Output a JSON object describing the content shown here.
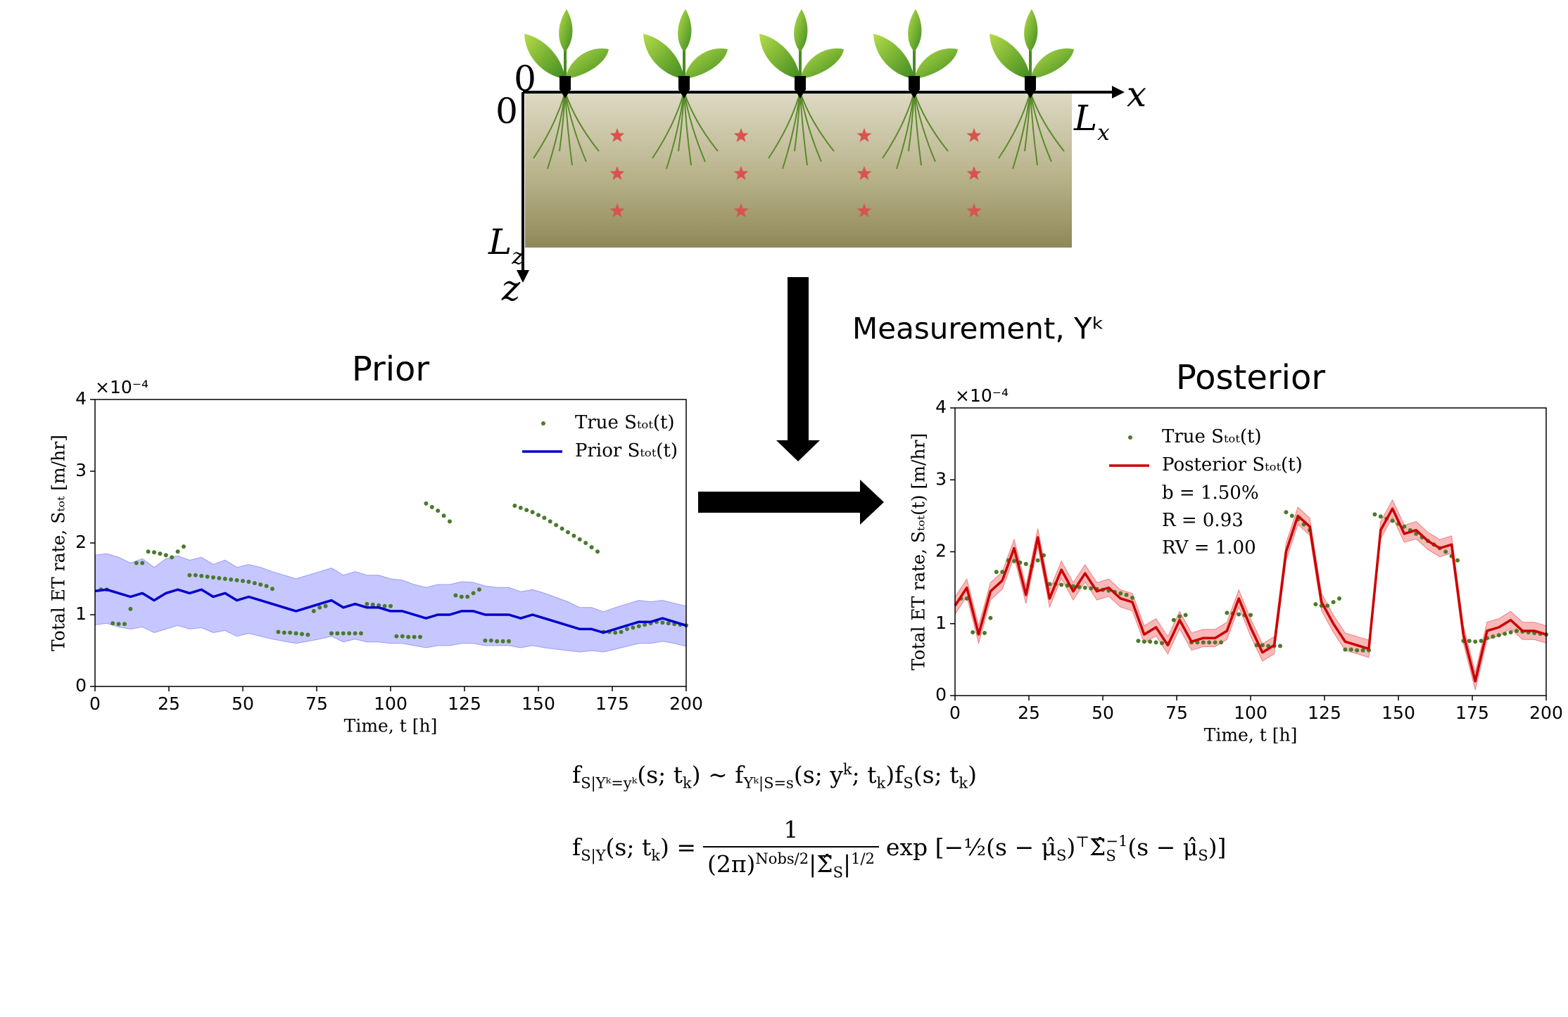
{
  "diagram": {
    "x_origin": "0",
    "z_origin": "0",
    "x_axis": "x",
    "z_axis": "z",
    "x_length": {
      "text": "L",
      "sub": "x"
    },
    "z_length": {
      "text": "L",
      "sub": "z"
    },
    "arrow_label": "Measurement, Yᵏ"
  },
  "chart_data": [
    {
      "type": "line",
      "title": "Prior",
      "x_label": "Time, t [h]",
      "y_label": "Total ET rate, Sₜₒₜ [m/hr]",
      "offset_label": "×10⁻⁴",
      "xlim": [
        0,
        200
      ],
      "xticks": [
        0,
        25,
        50,
        75,
        100,
        125,
        150,
        175,
        200
      ],
      "ylim": [
        0,
        4
      ],
      "yticks": [
        0,
        1,
        2,
        3,
        4
      ],
      "legend": "upper right",
      "series": [
        {
          "name": "True Sₜₒₜ(t)",
          "type": "scatter",
          "color": "#4a7a2c",
          "x": [
            2,
            4,
            6,
            8,
            10,
            12,
            14,
            16,
            18,
            20,
            22,
            24,
            26,
            28,
            30,
            32,
            34,
            36,
            38,
            40,
            42,
            44,
            46,
            48,
            50,
            52,
            54,
            56,
            58,
            60,
            62,
            64,
            66,
            68,
            70,
            72,
            74,
            76,
            78,
            80,
            82,
            84,
            86,
            88,
            90,
            92,
            94,
            96,
            98,
            100,
            102,
            104,
            106,
            108,
            110,
            112,
            114,
            116,
            118,
            120,
            122,
            124,
            126,
            128,
            130,
            132,
            134,
            136,
            138,
            140,
            142,
            144,
            146,
            148,
            150,
            152,
            154,
            156,
            158,
            160,
            162,
            164,
            166,
            168,
            170,
            172,
            174,
            176,
            178,
            180,
            182,
            184,
            186,
            188,
            190,
            192,
            194,
            196,
            198,
            200
          ],
          "values": [
            1.35,
            1.35,
            0.88,
            0.87,
            0.87,
            1.08,
            1.72,
            1.72,
            1.88,
            1.87,
            1.85,
            1.83,
            1.8,
            1.88,
            1.95,
            1.55,
            1.55,
            1.54,
            1.53,
            1.52,
            1.51,
            1.5,
            1.49,
            1.48,
            1.47,
            1.46,
            1.44,
            1.42,
            1.4,
            1.36,
            0.76,
            0.75,
            0.75,
            0.74,
            0.73,
            0.72,
            1.05,
            1.1,
            1.12,
            0.74,
            0.74,
            0.74,
            0.74,
            0.74,
            0.74,
            1.15,
            1.14,
            1.13,
            1.12,
            1.12,
            0.7,
            0.7,
            0.69,
            0.69,
            0.69,
            2.55,
            2.5,
            2.45,
            2.38,
            2.3,
            1.27,
            1.25,
            1.25,
            1.3,
            1.35,
            0.64,
            0.64,
            0.63,
            0.63,
            0.63,
            2.52,
            2.49,
            2.46,
            2.43,
            2.39,
            2.35,
            2.3,
            2.25,
            2.2,
            2.15,
            2.1,
            2.05,
            2.0,
            1.94,
            1.88,
            0.76,
            0.76,
            0.75,
            0.76,
            0.8,
            0.82,
            0.84,
            0.86,
            0.88,
            0.9,
            0.89,
            0.88,
            0.87,
            0.86,
            0.85
          ]
        },
        {
          "name": "Prior Sₜₒₜ(t)",
          "type": "line",
          "color": "#0000cc",
          "band_color": "#9999ff",
          "x": [
            0,
            4,
            8,
            12,
            16,
            20,
            24,
            28,
            32,
            36,
            40,
            44,
            48,
            52,
            56,
            60,
            64,
            68,
            72,
            76,
            80,
            84,
            88,
            92,
            96,
            100,
            104,
            108,
            112,
            116,
            120,
            124,
            128,
            132,
            136,
            140,
            144,
            148,
            152,
            156,
            160,
            164,
            168,
            172,
            176,
            180,
            184,
            188,
            192,
            196,
            200
          ],
          "values": [
            1.33,
            1.35,
            1.3,
            1.25,
            1.3,
            1.2,
            1.3,
            1.35,
            1.3,
            1.35,
            1.25,
            1.3,
            1.2,
            1.25,
            1.2,
            1.15,
            1.1,
            1.05,
            1.1,
            1.15,
            1.2,
            1.1,
            1.15,
            1.1,
            1.1,
            1.05,
            1.05,
            1.0,
            0.95,
            1.0,
            1.0,
            1.05,
            1.05,
            1.0,
            1.0,
            1.0,
            0.95,
            1.0,
            0.95,
            0.9,
            0.85,
            0.8,
            0.8,
            0.75,
            0.8,
            0.85,
            0.9,
            0.9,
            0.95,
            0.9,
            0.85
          ],
          "lower": [
            0.86,
            0.88,
            0.83,
            0.8,
            0.83,
            0.75,
            0.8,
            0.85,
            0.8,
            0.82,
            0.75,
            0.78,
            0.7,
            0.74,
            0.7,
            0.66,
            0.63,
            0.6,
            0.63,
            0.66,
            0.7,
            0.62,
            0.66,
            0.62,
            0.62,
            0.6,
            0.6,
            0.57,
            0.54,
            0.57,
            0.57,
            0.6,
            0.6,
            0.57,
            0.57,
            0.57,
            0.54,
            0.57,
            0.54,
            0.52,
            0.5,
            0.48,
            0.5,
            0.48,
            0.52,
            0.56,
            0.6,
            0.6,
            0.63,
            0.6,
            0.56
          ],
          "upper": [
            1.83,
            1.85,
            1.8,
            1.72,
            1.78,
            1.66,
            1.78,
            1.82,
            1.76,
            1.8,
            1.7,
            1.76,
            1.66,
            1.7,
            1.66,
            1.6,
            1.55,
            1.5,
            1.55,
            1.6,
            1.65,
            1.55,
            1.6,
            1.55,
            1.55,
            1.5,
            1.48,
            1.42,
            1.38,
            1.42,
            1.42,
            1.46,
            1.45,
            1.4,
            1.38,
            1.38,
            1.32,
            1.35,
            1.3,
            1.24,
            1.18,
            1.1,
            1.1,
            1.04,
            1.1,
            1.15,
            1.2,
            1.18,
            1.2,
            1.16,
            1.12
          ]
        }
      ]
    },
    {
      "type": "line",
      "title": "Posterior",
      "x_label": "Time, t [h]",
      "y_label": "Total ET rate, Sₜₒₜ(t) [m/hr]",
      "offset_label": "×10⁻⁴",
      "xlim": [
        0,
        200
      ],
      "xticks": [
        0,
        25,
        50,
        75,
        100,
        125,
        150,
        175,
        200
      ],
      "ylim": [
        0,
        4
      ],
      "yticks": [
        0,
        1,
        2,
        3,
        4
      ],
      "legend": "upper center",
      "annotations": [
        "b = 1.50%",
        "R = 0.93",
        "RV = 1.00"
      ],
      "series": [
        {
          "name": "True Sₜₒₜ(t)",
          "type": "scatter",
          "color": "#4a7a2c",
          "x": [
            2,
            4,
            6,
            8,
            10,
            12,
            14,
            16,
            18,
            20,
            22,
            24,
            26,
            28,
            30,
            32,
            34,
            36,
            38,
            40,
            42,
            44,
            46,
            48,
            50,
            52,
            54,
            56,
            58,
            60,
            62,
            64,
            66,
            68,
            70,
            72,
            74,
            76,
            78,
            80,
            82,
            84,
            86,
            88,
            90,
            92,
            94,
            96,
            98,
            100,
            102,
            104,
            106,
            108,
            110,
            112,
            114,
            116,
            118,
            120,
            122,
            124,
            126,
            128,
            130,
            132,
            134,
            136,
            138,
            140,
            142,
            144,
            146,
            148,
            150,
            152,
            154,
            156,
            158,
            160,
            162,
            164,
            166,
            168,
            170,
            172,
            174,
            176,
            178,
            180,
            182,
            184,
            186,
            188,
            190,
            192,
            194,
            196,
            198,
            200
          ],
          "values": [
            1.35,
            1.35,
            0.88,
            0.87,
            0.87,
            1.08,
            1.72,
            1.72,
            1.88,
            1.87,
            1.85,
            1.83,
            1.8,
            1.88,
            1.95,
            1.55,
            1.55,
            1.54,
            1.53,
            1.52,
            1.51,
            1.5,
            1.49,
            1.48,
            1.47,
            1.46,
            1.44,
            1.42,
            1.4,
            1.36,
            0.76,
            0.75,
            0.75,
            0.74,
            0.73,
            0.72,
            1.05,
            1.1,
            1.12,
            0.74,
            0.74,
            0.74,
            0.74,
            0.74,
            0.74,
            1.15,
            1.14,
            1.13,
            1.12,
            1.12,
            0.7,
            0.7,
            0.69,
            0.69,
            0.69,
            2.55,
            2.5,
            2.45,
            2.38,
            2.3,
            1.27,
            1.25,
            1.25,
            1.3,
            1.35,
            0.64,
            0.64,
            0.63,
            0.63,
            0.63,
            2.52,
            2.49,
            2.46,
            2.43,
            2.39,
            2.35,
            2.3,
            2.25,
            2.2,
            2.15,
            2.1,
            2.05,
            2.0,
            1.94,
            1.88,
            0.76,
            0.76,
            0.75,
            0.76,
            0.8,
            0.82,
            0.84,
            0.86,
            0.88,
            0.9,
            0.89,
            0.88,
            0.87,
            0.86,
            0.85
          ]
        },
        {
          "name": "Posterior Sₜₒₜ(t)",
          "type": "line",
          "color": "#cc0000",
          "band_color": "#f08080",
          "x": [
            0,
            4,
            8,
            12,
            16,
            20,
            24,
            28,
            32,
            36,
            40,
            44,
            48,
            52,
            56,
            60,
            64,
            68,
            72,
            76,
            80,
            84,
            88,
            92,
            96,
            100,
            104,
            108,
            112,
            116,
            120,
            124,
            128,
            132,
            136,
            140,
            144,
            148,
            152,
            156,
            160,
            164,
            168,
            172,
            176,
            180,
            184,
            188,
            192,
            196,
            200
          ],
          "values": [
            1.25,
            1.5,
            0.85,
            1.45,
            1.6,
            2.05,
            1.4,
            2.2,
            1.35,
            1.75,
            1.45,
            1.7,
            1.45,
            1.5,
            1.35,
            1.3,
            0.85,
            0.95,
            0.7,
            1.05,
            0.75,
            0.8,
            0.8,
            0.9,
            1.35,
            0.95,
            0.6,
            0.7,
            2.0,
            2.5,
            2.35,
            1.3,
            1.0,
            0.75,
            0.7,
            0.65,
            2.3,
            2.6,
            2.25,
            2.3,
            2.15,
            2.05,
            2.1,
            0.85,
            0.2,
            0.9,
            0.95,
            1.05,
            0.9,
            0.9,
            0.85
          ],
          "lower": [
            1.13,
            1.38,
            0.73,
            1.33,
            1.48,
            1.93,
            1.28,
            2.08,
            1.23,
            1.63,
            1.33,
            1.58,
            1.33,
            1.38,
            1.23,
            1.18,
            0.73,
            0.83,
            0.58,
            0.93,
            0.63,
            0.68,
            0.68,
            0.78,
            1.23,
            0.83,
            0.48,
            0.58,
            1.88,
            2.38,
            2.23,
            1.18,
            0.88,
            0.63,
            0.58,
            0.53,
            2.18,
            2.48,
            2.13,
            2.18,
            2.03,
            1.93,
            1.98,
            0.73,
            0.08,
            0.78,
            0.83,
            0.93,
            0.78,
            0.78,
            0.73
          ],
          "upper": [
            1.37,
            1.62,
            0.97,
            1.57,
            1.72,
            2.17,
            1.52,
            2.32,
            1.47,
            1.87,
            1.57,
            1.82,
            1.57,
            1.62,
            1.47,
            1.42,
            0.97,
            1.07,
            0.82,
            1.17,
            0.87,
            0.92,
            0.92,
            1.02,
            1.47,
            1.07,
            0.72,
            0.82,
            2.12,
            2.62,
            2.47,
            1.42,
            1.12,
            0.87,
            0.82,
            0.77,
            2.42,
            2.72,
            2.37,
            2.42,
            2.27,
            2.17,
            2.22,
            0.97,
            0.32,
            1.02,
            1.07,
            1.17,
            1.02,
            1.02,
            0.97
          ]
        }
      ]
    }
  ],
  "equations": {
    "bayes": [
      {
        "text": "f",
        "sub": "S|Yᵏ=yᵏ"
      },
      {
        "text": "(s; t",
        "sub": "k"
      },
      {
        "text": ") ∼ f",
        "sub": "Yᵏ|S=s"
      },
      {
        "text": "(s; y",
        "sup": "k"
      },
      {
        "text": "; t",
        "sub": "k"
      },
      {
        "text": ")f",
        "sub": "S"
      },
      {
        "text": "(s; t",
        "sub": "k"
      },
      {
        "text": ")"
      }
    ],
    "likelihood": {
      "lhs": [
        {
          "text": "f",
          "sub": "S|Y"
        },
        {
          "text": "(s; t",
          "sub": "k"
        },
        {
          "text": ") ="
        }
      ],
      "numerator": "1",
      "denominator": [
        {
          "text": "(2π)",
          "sup": "Nobs/2"
        },
        {
          "text": "|Σ̂",
          "sub": "S"
        },
        {
          "text": "|",
          "sup": "1/2"
        }
      ],
      "rhs": [
        {
          "text": "exp [−½(s − μ̂",
          "sub": "S"
        },
        {
          "text": ")",
          "sup": "⊤"
        },
        {
          "text": "Σ̂",
          "sub": "S",
          "sup": "−1"
        },
        {
          "text": "(s − μ̂",
          "sub": "S"
        },
        {
          "text": ")]"
        }
      ]
    }
  }
}
